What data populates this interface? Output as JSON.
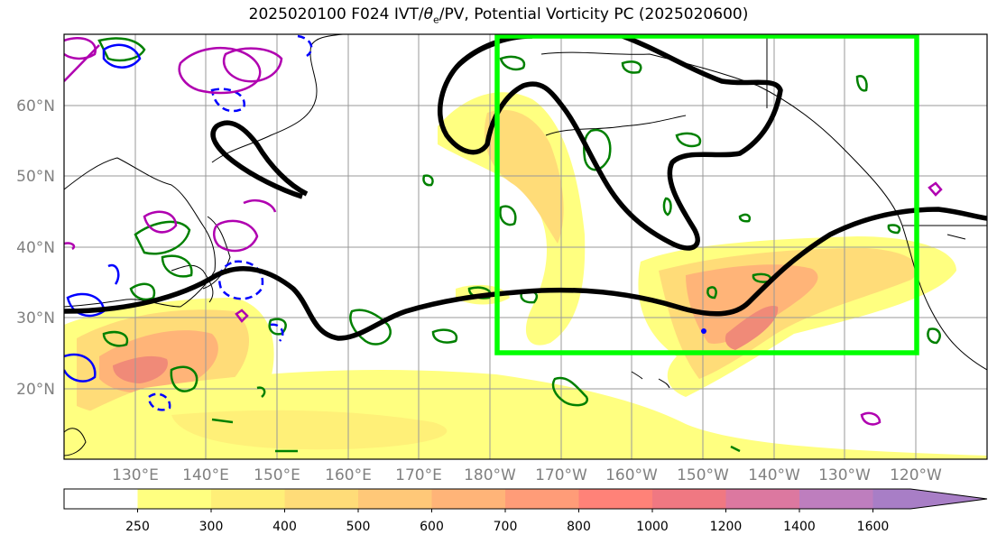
{
  "title": {
    "prefix": "2025020100 F024 IVT/",
    "theta": "θ",
    "theta_sub": "e",
    "suffix": "/PV, Potential Vorticity PC (2025020600)"
  },
  "axes": {
    "lon_labels": [
      "130°E",
      "140°E",
      "150°E",
      "160°E",
      "170°E",
      "180°W",
      "170°W",
      "160°W",
      "150°W",
      "140°W",
      "130°W",
      "120°W"
    ],
    "lat_labels": [
      "60°N",
      "50°N",
      "40°N",
      "30°N",
      "20°N"
    ]
  },
  "colorbar": {
    "levels": [
      "250",
      "300",
      "400",
      "500",
      "600",
      "700",
      "800",
      "1000",
      "1200",
      "1400",
      "1600"
    ],
    "colors": [
      "#ffffff",
      "#ffff80",
      "#ffef78",
      "#ffdc78",
      "#ffc878",
      "#ffb478",
      "#ff9c78",
      "#ff8278",
      "#f07882",
      "#dc78a0",
      "#be7ebe",
      "#a87ec6"
    ]
  },
  "colors": {
    "box": "#00ff00",
    "pv_line": "#000000",
    "coast": "#000000",
    "green_contour": "#008000",
    "blue_contour": "#0000ff",
    "magenta_contour": "#b000b0"
  },
  "chart_data": {
    "type": "map",
    "projection": "PlateCarree",
    "extent": {
      "lon": [
        120,
        250
      ],
      "lat": [
        10,
        70
      ]
    },
    "variables": [
      "IVT (kg m-1 s-1)",
      "theta_e",
      "PV"
    ],
    "highlight_box": {
      "lon": [
        180,
        240
      ],
      "lat": [
        25,
        70
      ]
    }
  }
}
